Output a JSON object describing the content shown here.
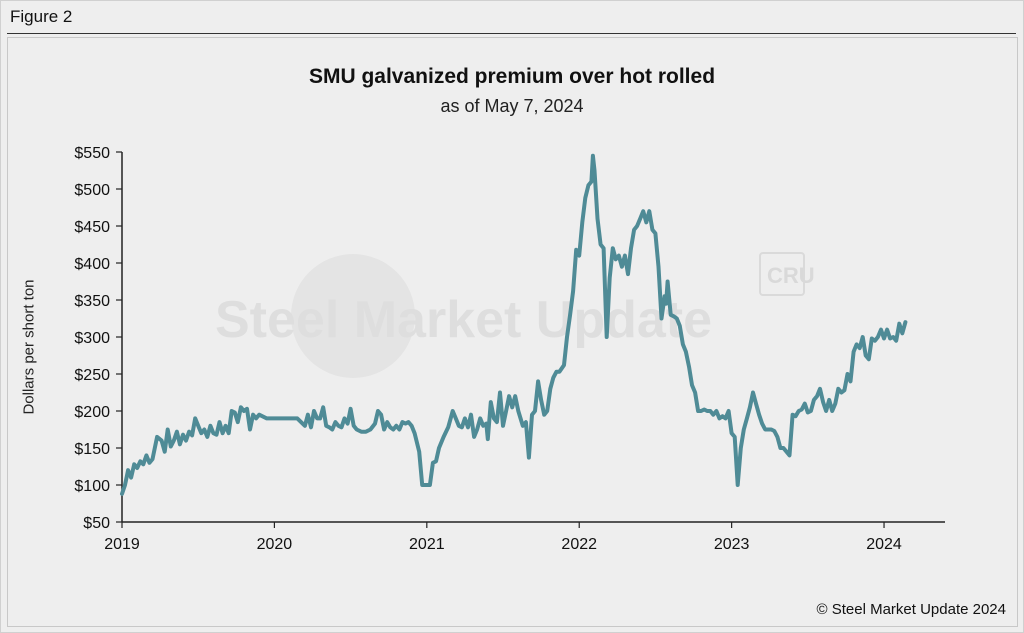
{
  "figure_label": "Figure 2",
  "copyright": "© Steel Market Update 2024",
  "watermark": {
    "text": "Steel Market Update",
    "badge": "CRU"
  },
  "colors": {
    "line": "#4f8b96",
    "background": "#eeeeee",
    "axis": "#222222"
  },
  "chart_data": {
    "type": "line",
    "title": "SMU galvanized premium over hot rolled",
    "subtitle": "as of May 7, 2024",
    "xlabel": "",
    "ylabel": "Dollars per short ton",
    "xlim": [
      2019.0,
      2024.4
    ],
    "ylim": [
      50,
      550
    ],
    "yticks": [
      50,
      100,
      150,
      200,
      250,
      300,
      350,
      400,
      450,
      500,
      550
    ],
    "ytick_labels": [
      "$50",
      "$100",
      "$150",
      "$200",
      "$250",
      "$300",
      "$350",
      "$400",
      "$450",
      "$500",
      "$550"
    ],
    "xticks": [
      2019,
      2020,
      2021,
      2022,
      2023,
      2024
    ],
    "xtick_labels": [
      "2019",
      "2020",
      "2021",
      "2022",
      "2023",
      "2024"
    ],
    "grid": false,
    "series": [
      {
        "name": "Galvanized premium over hot rolled",
        "points": [
          [
            2019.0,
            88
          ],
          [
            2019.02,
            100
          ],
          [
            2019.04,
            120
          ],
          [
            2019.06,
            110
          ],
          [
            2019.08,
            128
          ],
          [
            2019.1,
            123
          ],
          [
            2019.12,
            132
          ],
          [
            2019.14,
            128
          ],
          [
            2019.16,
            140
          ],
          [
            2019.18,
            130
          ],
          [
            2019.2,
            135
          ],
          [
            2019.23,
            165
          ],
          [
            2019.26,
            160
          ],
          [
            2019.28,
            145
          ],
          [
            2019.3,
            175
          ],
          [
            2019.32,
            152
          ],
          [
            2019.34,
            160
          ],
          [
            2019.36,
            172
          ],
          [
            2019.38,
            155
          ],
          [
            2019.4,
            168
          ],
          [
            2019.42,
            160
          ],
          [
            2019.44,
            172
          ],
          [
            2019.46,
            167
          ],
          [
            2019.48,
            190
          ],
          [
            2019.5,
            180
          ],
          [
            2019.52,
            170
          ],
          [
            2019.54,
            175
          ],
          [
            2019.56,
            165
          ],
          [
            2019.58,
            180
          ],
          [
            2019.6,
            170
          ],
          [
            2019.62,
            168
          ],
          [
            2019.64,
            185
          ],
          [
            2019.66,
            170
          ],
          [
            2019.68,
            180
          ],
          [
            2019.7,
            170
          ],
          [
            2019.72,
            200
          ],
          [
            2019.74,
            198
          ],
          [
            2019.76,
            185
          ],
          [
            2019.78,
            205
          ],
          [
            2019.8,
            200
          ],
          [
            2019.82,
            203
          ],
          [
            2019.84,
            175
          ],
          [
            2019.86,
            195
          ],
          [
            2019.88,
            190
          ],
          [
            2019.9,
            195
          ],
          [
            2019.95,
            190
          ],
          [
            2020.0,
            190
          ],
          [
            2020.05,
            190
          ],
          [
            2020.1,
            190
          ],
          [
            2020.15,
            190
          ],
          [
            2020.2,
            180
          ],
          [
            2020.22,
            195
          ],
          [
            2020.24,
            178
          ],
          [
            2020.26,
            200
          ],
          [
            2020.28,
            190
          ],
          [
            2020.3,
            190
          ],
          [
            2020.32,
            205
          ],
          [
            2020.34,
            180
          ],
          [
            2020.36,
            178
          ],
          [
            2020.38,
            175
          ],
          [
            2020.4,
            185
          ],
          [
            2020.42,
            180
          ],
          [
            2020.44,
            178
          ],
          [
            2020.46,
            190
          ],
          [
            2020.48,
            183
          ],
          [
            2020.5,
            203
          ],
          [
            2020.52,
            180
          ],
          [
            2020.54,
            175
          ],
          [
            2020.57,
            172
          ],
          [
            2020.6,
            172
          ],
          [
            2020.63,
            175
          ],
          [
            2020.66,
            183
          ],
          [
            2020.68,
            200
          ],
          [
            2020.7,
            195
          ],
          [
            2020.72,
            175
          ],
          [
            2020.74,
            185
          ],
          [
            2020.76,
            178
          ],
          [
            2020.78,
            175
          ],
          [
            2020.8,
            180
          ],
          [
            2020.82,
            175
          ],
          [
            2020.84,
            185
          ],
          [
            2020.86,
            183
          ],
          [
            2020.88,
            185
          ],
          [
            2020.9,
            180
          ],
          [
            2020.92,
            170
          ],
          [
            2020.95,
            145
          ],
          [
            2020.97,
            100
          ],
          [
            2021.0,
            100
          ],
          [
            2021.02,
            100
          ],
          [
            2021.04,
            130
          ],
          [
            2021.06,
            132
          ],
          [
            2021.08,
            150
          ],
          [
            2021.11,
            165
          ],
          [
            2021.14,
            178
          ],
          [
            2021.17,
            200
          ],
          [
            2021.19,
            190
          ],
          [
            2021.21,
            180
          ],
          [
            2021.23,
            178
          ],
          [
            2021.25,
            190
          ],
          [
            2021.27,
            178
          ],
          [
            2021.29,
            195
          ],
          [
            2021.31,
            165
          ],
          [
            2021.33,
            175
          ],
          [
            2021.35,
            190
          ],
          [
            2021.37,
            180
          ],
          [
            2021.39,
            183
          ],
          [
            2021.4,
            162
          ],
          [
            2021.42,
            212
          ],
          [
            2021.44,
            190
          ],
          [
            2021.46,
            185
          ],
          [
            2021.48,
            225
          ],
          [
            2021.5,
            180
          ],
          [
            2021.52,
            200
          ],
          [
            2021.54,
            220
          ],
          [
            2021.56,
            205
          ],
          [
            2021.58,
            220
          ],
          [
            2021.6,
            200
          ],
          [
            2021.63,
            180
          ],
          [
            2021.65,
            185
          ],
          [
            2021.67,
            137
          ],
          [
            2021.69,
            195
          ],
          [
            2021.71,
            200
          ],
          [
            2021.73,
            240
          ],
          [
            2021.75,
            215
          ],
          [
            2021.77,
            195
          ],
          [
            2021.79,
            200
          ],
          [
            2021.81,
            230
          ],
          [
            2021.83,
            245
          ],
          [
            2021.85,
            253
          ],
          [
            2021.87,
            253
          ],
          [
            2021.9,
            262
          ],
          [
            2021.92,
            300
          ],
          [
            2021.94,
            330
          ],
          [
            2021.96,
            362
          ],
          [
            2021.98,
            418
          ],
          [
            2022.0,
            410
          ],
          [
            2022.02,
            455
          ],
          [
            2022.04,
            488
          ],
          [
            2022.06,
            505
          ],
          [
            2022.08,
            510
          ],
          [
            2022.09,
            545
          ],
          [
            2022.1,
            525
          ],
          [
            2022.12,
            460
          ],
          [
            2022.14,
            425
          ],
          [
            2022.16,
            420
          ],
          [
            2022.18,
            300
          ],
          [
            2022.2,
            380
          ],
          [
            2022.22,
            420
          ],
          [
            2022.24,
            405
          ],
          [
            2022.26,
            410
          ],
          [
            2022.28,
            395
          ],
          [
            2022.3,
            410
          ],
          [
            2022.32,
            385
          ],
          [
            2022.34,
            420
          ],
          [
            2022.36,
            445
          ],
          [
            2022.38,
            450
          ],
          [
            2022.4,
            460
          ],
          [
            2022.42,
            470
          ],
          [
            2022.44,
            455
          ],
          [
            2022.46,
            470
          ],
          [
            2022.48,
            445
          ],
          [
            2022.5,
            440
          ],
          [
            2022.52,
            395
          ],
          [
            2022.54,
            325
          ],
          [
            2022.56,
            355
          ],
          [
            2022.57,
            345
          ],
          [
            2022.58,
            375
          ],
          [
            2022.6,
            330
          ],
          [
            2022.62,
            328
          ],
          [
            2022.64,
            325
          ],
          [
            2022.66,
            315
          ],
          [
            2022.68,
            290
          ],
          [
            2022.7,
            280
          ],
          [
            2022.72,
            260
          ],
          [
            2022.74,
            235
          ],
          [
            2022.76,
            225
          ],
          [
            2022.78,
            200
          ],
          [
            2022.8,
            200
          ],
          [
            2022.82,
            202
          ],
          [
            2022.84,
            200
          ],
          [
            2022.86,
            200
          ],
          [
            2022.88,
            195
          ],
          [
            2022.9,
            200
          ],
          [
            2022.92,
            190
          ],
          [
            2022.94,
            193
          ],
          [
            2022.96,
            190
          ],
          [
            2022.98,
            200
          ],
          [
            2023.0,
            170
          ],
          [
            2023.02,
            165
          ],
          [
            2023.04,
            100
          ],
          [
            2023.06,
            150
          ],
          [
            2023.08,
            175
          ],
          [
            2023.1,
            190
          ],
          [
            2023.12,
            205
          ],
          [
            2023.14,
            225
          ],
          [
            2023.16,
            210
          ],
          [
            2023.18,
            195
          ],
          [
            2023.2,
            183
          ],
          [
            2023.22,
            175
          ],
          [
            2023.24,
            175
          ],
          [
            2023.26,
            175
          ],
          [
            2023.28,
            173
          ],
          [
            2023.3,
            165
          ],
          [
            2023.32,
            150
          ],
          [
            2023.34,
            150
          ],
          [
            2023.36,
            145
          ],
          [
            2023.38,
            140
          ],
          [
            2023.4,
            195
          ],
          [
            2023.42,
            193
          ],
          [
            2023.44,
            200
          ],
          [
            2023.46,
            202
          ],
          [
            2023.48,
            210
          ],
          [
            2023.5,
            198
          ],
          [
            2023.52,
            200
          ],
          [
            2023.54,
            215
          ],
          [
            2023.56,
            220
          ],
          [
            2023.58,
            230
          ],
          [
            2023.6,
            212
          ],
          [
            2023.62,
            200
          ],
          [
            2023.64,
            215
          ],
          [
            2023.66,
            200
          ],
          [
            2023.68,
            210
          ],
          [
            2023.7,
            230
          ],
          [
            2023.72,
            225
          ],
          [
            2023.74,
            228
          ],
          [
            2023.76,
            250
          ],
          [
            2023.78,
            240
          ],
          [
            2023.8,
            280
          ],
          [
            2023.82,
            290
          ],
          [
            2023.84,
            285
          ],
          [
            2023.86,
            300
          ],
          [
            2023.88,
            275
          ],
          [
            2023.9,
            270
          ],
          [
            2023.92,
            298
          ],
          [
            2023.94,
            295
          ],
          [
            2023.96,
            300
          ],
          [
            2023.98,
            310
          ],
          [
            2024.0,
            298
          ],
          [
            2024.02,
            310
          ],
          [
            2024.04,
            298
          ],
          [
            2024.06,
            300
          ],
          [
            2024.08,
            295
          ],
          [
            2024.1,
            318
          ],
          [
            2024.12,
            305
          ],
          [
            2024.14,
            320
          ]
        ]
      }
    ]
  }
}
